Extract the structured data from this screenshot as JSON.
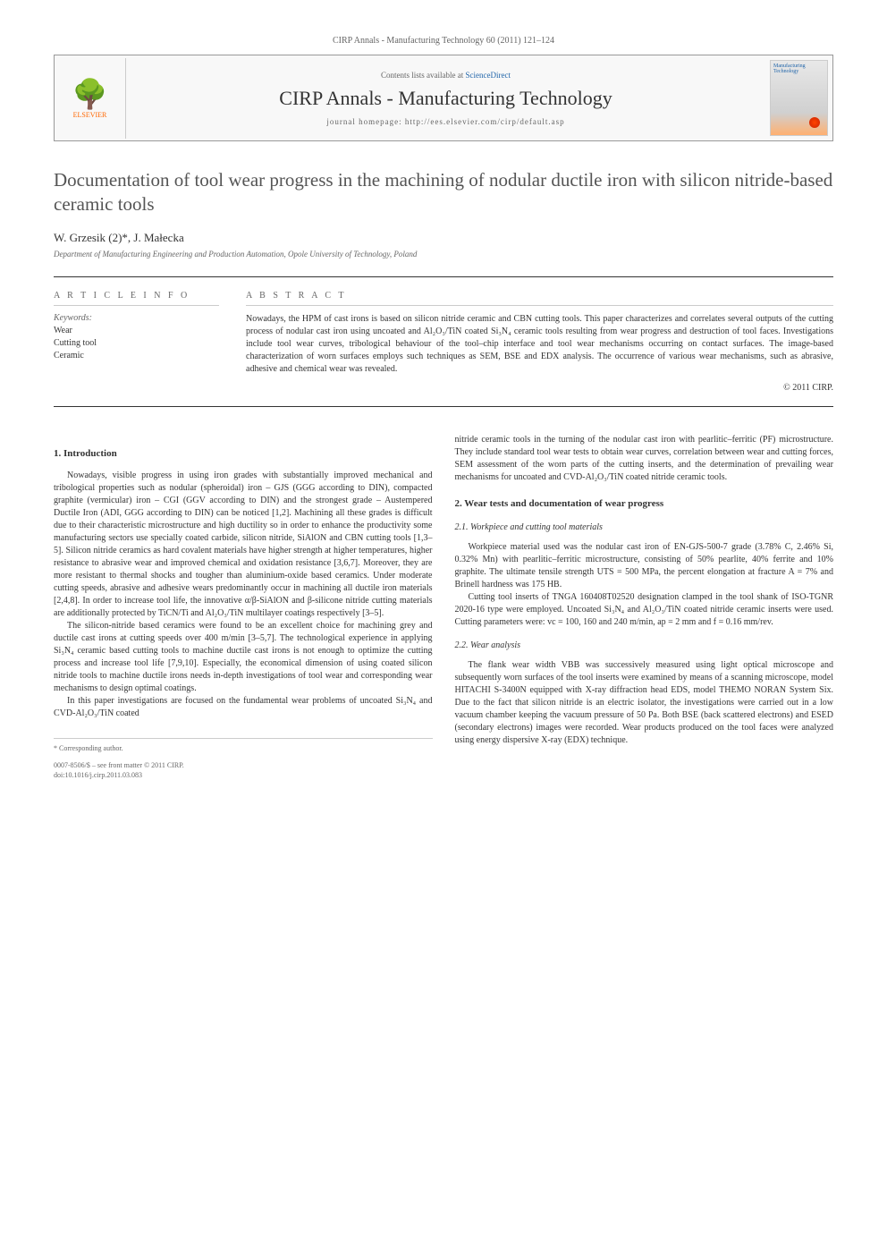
{
  "header": {
    "citation_line": "CIRP Annals - Manufacturing Technology 60 (2011) 121–124",
    "contents_text": "Contents lists available at ",
    "contents_link": "ScienceDirect",
    "journal_name": "CIRP Annals - Manufacturing Technology",
    "homepage_label": "journal homepage: http://ees.elsevier.com/cirp/default.asp",
    "publisher": "ELSEVIER",
    "cover_text": "Manufacturing Technology"
  },
  "article": {
    "title": "Documentation of tool wear progress in the machining of nodular ductile iron with silicon nitride-based ceramic tools",
    "authors": "W. Grzesik (2)*, J. Małecka",
    "affiliation": "Department of Manufacturing Engineering and Production Automation, Opole University of Technology, Poland"
  },
  "info": {
    "section_title": "A R T I C L E  I N F O",
    "keywords_label": "Keywords:",
    "keywords": [
      "Wear",
      "Cutting tool",
      "Ceramic"
    ]
  },
  "abstract": {
    "section_title": "A B S T R A C T",
    "text": "Nowadays, the HPM of cast irons is based on silicon nitride ceramic and CBN cutting tools. This paper characterizes and correlates several outputs of the cutting process of nodular cast iron using uncoated and Al₂O₃/TiN coated Si₃N₄ ceramic tools resulting from wear progress and destruction of tool faces. Investigations include tool wear curves, tribological behaviour of the tool–chip interface and tool wear mechanisms occurring on contact surfaces. The image-based characterization of worn surfaces employs such techniques as SEM, BSE and EDX analysis. The occurrence of various wear mechanisms, such as abrasive, adhesive and chemical wear was revealed.",
    "copyright": "© 2011 CIRP."
  },
  "sections": {
    "intro_heading": "1. Introduction",
    "intro_p1": "Nowadays, visible progress in using iron grades with substantially improved mechanical and tribological properties such as nodular (spheroidal) iron – GJS (GGG according to DIN), compacted graphite (vermicular) iron – CGI (GGV according to DIN) and the strongest grade – Austempered Ductile Iron (ADI, GGG according to DIN) can be noticed [1,2]. Machining all these grades is difficult due to their characteristic microstructure and high ductility so in order to enhance the productivity some manufacturing sectors use specially coated carbide, silicon nitride, SiAlON and CBN cutting tools [1,3–5]. Silicon nitride ceramics as hard covalent materials have higher strength at higher temperatures, higher resistance to abrasive wear and improved chemical and oxidation resistance [3,6,7]. Moreover, they are more resistant to thermal shocks and tougher than aluminium-oxide based ceramics. Under moderate cutting speeds, abrasive and adhesive wears predominantly occur in machining all ductile iron materials [2,4,8]. In order to increase tool life, the innovative α/β-SiAlON and β-silicone nitride cutting materials are additionally protected by TiCN/Ti and Al₂O₃/TiN multilayer coatings respectively [3–5].",
    "intro_p2": "The silicon-nitride based ceramics were found to be an excellent choice for machining grey and ductile cast irons at cutting speeds over 400 m/min [3–5,7]. The technological experience in applying Si₃N₄ ceramic based cutting tools to machine ductile cast irons is not enough to optimize the cutting process and increase tool life [7,9,10]. Especially, the economical dimension of using coated silicon nitride tools to machine ductile irons needs in-depth investigations of tool wear and corresponding wear mechanisms to design optimal coatings.",
    "intro_p3": "In this paper investigations are focused on the fundamental wear problems of uncoated Si₃N₄ and CVD-Al₂O₃/TiN coated",
    "intro_p3_cont": "nitride ceramic tools in the turning of the nodular cast iron with pearlitic–ferritic (PF) microstructure. They include standard tool wear tests to obtain wear curves, correlation between wear and cutting forces, SEM assessment of the worn parts of the cutting inserts, and the determination of prevailing wear mechanisms for uncoated and CVD-Al₂O₃/TiN coated nitride ceramic tools.",
    "sec2_heading": "2. Wear tests and documentation of wear progress",
    "sec21_heading": "2.1. Workpiece and cutting tool materials",
    "sec21_p1": "Workpiece material used was the nodular cast iron of EN-GJS-500-7 grade (3.78% C, 2.46% Si, 0.32% Mn) with pearlitic–ferritic microstructure, consisting of 50% pearlite, 40% ferrite and 10% graphite. The ultimate tensile strength UTS = 500 MPa, the percent elongation at fracture A = 7% and Brinell hardness was 175 HB.",
    "sec21_p2": "Cutting tool inserts of TNGA 160408T02520 designation clamped in the tool shank of ISO-TGNR 2020-16 type were employed. Uncoated Si₃N₄ and Al₂O₃/TiN coated nitride ceramic inserts were used. Cutting parameters were: vc = 100, 160 and 240 m/min, ap = 2 mm and f = 0.16 mm/rev.",
    "sec22_heading": "2.2. Wear analysis",
    "sec22_p1": "The flank wear width VBB was successively measured using light optical microscope and subsequently worn surfaces of the tool inserts were examined by means of a scanning microscope, model HITACHI S-3400N equipped with X-ray diffraction head EDS, model THEMO NORAN System Six. Due to the fact that silicon nitride is an electric isolator, the investigations were carried out in a low vacuum chamber keeping the vacuum pressure of 50 Pa. Both BSE (back scattered electrons) and ESED (secondary electrons) images were recorded. Wear products produced on the tool faces were analyzed using energy dispersive X-ray (EDX) technique."
  },
  "footer": {
    "corresponding": "* Corresponding author.",
    "issn": "0007-8506/$ – see front matter © 2011 CIRP.",
    "doi": "doi:10.1016/j.cirp.2011.03.083"
  },
  "colors": {
    "link_color": "#2266aa",
    "text_color": "#333333",
    "muted_color": "#666666",
    "elsevier_orange": "#ff6600",
    "border_color": "#999999"
  },
  "typography": {
    "body_font": "Georgia, Times New Roman, serif",
    "title_fontsize": 21,
    "journal_fontsize": 22,
    "body_fontsize": 10,
    "heading_fontsize": 11
  }
}
